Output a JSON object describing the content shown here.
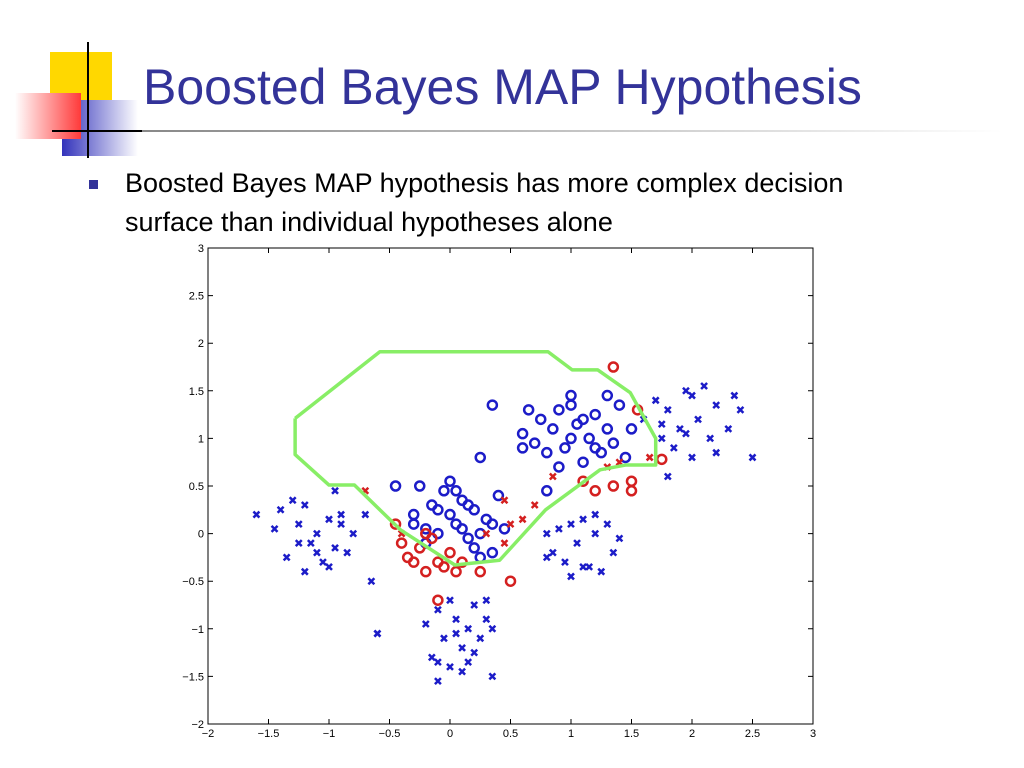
{
  "title": "Boosted Bayes MAP Hypothesis",
  "bullets": [
    "Boosted Bayes MAP hypothesis has more complex decision surface than individual hypotheses alone"
  ],
  "chart_data": {
    "type": "scatter",
    "xlim": [
      -2,
      3
    ],
    "xticks": [
      {
        "value": -2,
        "label": "−2"
      },
      {
        "value": -1.5,
        "label": "−1.5"
      },
      {
        "value": -1,
        "label": "−1"
      },
      {
        "value": -0.5,
        "label": "−0.5"
      },
      0,
      0.5,
      1,
      1.5,
      2,
      2.5,
      3
    ],
    "ylim": [
      -2,
      3
    ],
    "yticks": [
      {
        "value": -2,
        "label": "−2"
      },
      {
        "value": -1.5,
        "label": "−1.5"
      },
      {
        "value": -1,
        "label": "−1"
      },
      {
        "value": -0.5,
        "label": "−0.5"
      },
      0,
      0.5,
      1,
      1.5,
      2,
      2.5,
      3
    ],
    "series": [
      {
        "marker": "x",
        "color": "#1c1cc8",
        "x": [
          -1.6,
          -1.4,
          -1.35,
          -1.25,
          -1.2,
          -1.15,
          -1.1,
          -1.05,
          -1.0,
          -0.95,
          -0.9,
          -0.85,
          -0.8,
          -1.3,
          -1.2,
          -1.0,
          -0.9,
          -0.7,
          -1.1,
          -0.95,
          -1.45,
          -0.65,
          -0.6,
          -1.25,
          -0.2,
          -0.15,
          -0.1,
          -0.05,
          0.0,
          0.05,
          0.1,
          0.15,
          0.2,
          0.25,
          0.3,
          0.35,
          -0.1,
          0.0,
          0.1,
          0.2,
          0.3,
          0.05,
          -0.1,
          0.35,
          -0.6,
          0.15,
          1.6,
          1.7,
          1.75,
          1.8,
          1.85,
          1.9,
          1.95,
          2.0,
          2.05,
          2.1,
          2.15,
          2.2,
          2.3,
          2.4,
          2.5,
          1.8,
          2.0,
          2.2,
          1.95,
          1.75,
          2.35,
          0.8,
          0.85,
          0.9,
          0.95,
          1.0,
          1.05,
          1.1,
          1.15,
          1.2,
          1.25,
          1.3,
          1.35,
          1.0,
          1.2,
          1.4,
          0.8,
          1.1
        ],
        "values": [
          0.2,
          0.25,
          -0.25,
          0.1,
          0.3,
          -0.1,
          0.0,
          -0.3,
          0.15,
          -0.15,
          0.1,
          -0.2,
          0.0,
          0.35,
          -0.4,
          -0.35,
          0.2,
          0.2,
          -0.2,
          0.45,
          0.05,
          -0.5,
          -1.05,
          -0.1,
          -0.95,
          -1.3,
          -0.8,
          -1.1,
          -1.4,
          -0.9,
          -1.2,
          -1.0,
          -0.75,
          -1.1,
          -0.9,
          -1.5,
          -1.35,
          -0.7,
          -1.45,
          -1.25,
          -0.7,
          -1.05,
          -1.55,
          -1.0,
          -1.05,
          -1.35,
          1.2,
          1.4,
          1.0,
          1.3,
          0.9,
          1.1,
          1.5,
          0.8,
          1.2,
          1.55,
          1.0,
          1.35,
          1.1,
          1.3,
          0.8,
          0.6,
          1.45,
          0.85,
          1.05,
          1.15,
          1.45,
          0.0,
          -0.2,
          0.05,
          -0.3,
          0.1,
          -0.1,
          0.15,
          -0.35,
          0.0,
          -0.4,
          0.1,
          -0.2,
          -0.45,
          0.2,
          -0.05,
          -0.25,
          -0.35
        ]
      },
      {
        "marker": "o",
        "color": "#1c1cc8",
        "x": [
          -0.45,
          -0.3,
          -0.25,
          -0.2,
          -0.15,
          -0.1,
          -0.05,
          0.0,
          0.05,
          0.1,
          0.15,
          0.2,
          0.25,
          0.3,
          0.35,
          -0.2,
          0.0,
          0.1,
          0.2,
          0.35,
          0.4,
          -0.1,
          0.05,
          0.15,
          -0.3,
          0.25,
          0.45,
          0.35,
          0.6,
          0.65,
          0.7,
          0.75,
          0.8,
          0.85,
          0.9,
          0.95,
          1.0,
          1.05,
          1.1,
          1.15,
          1.2,
          1.25,
          1.3,
          1.35,
          1.4,
          1.45,
          1.5,
          0.9,
          1.0,
          1.1,
          1.2,
          1.3,
          1.0,
          0.6,
          0.25,
          0.8
        ],
        "values": [
          0.5,
          0.2,
          0.5,
          0.05,
          0.3,
          0.0,
          0.45,
          0.2,
          0.1,
          0.35,
          -0.05,
          0.25,
          0.0,
          0.15,
          -0.2,
          -0.1,
          0.55,
          0.05,
          -0.15,
          0.1,
          0.4,
          0.25,
          0.45,
          0.3,
          0.1,
          -0.25,
          0.05,
          1.35,
          1.05,
          1.3,
          0.95,
          1.2,
          0.85,
          1.1,
          1.3,
          0.9,
          1.45,
          1.15,
          0.75,
          1.0,
          1.25,
          0.85,
          1.1,
          0.95,
          1.35,
          0.8,
          1.1,
          0.7,
          1.0,
          1.2,
          0.9,
          1.45,
          1.35,
          0.9,
          0.8,
          0.45
        ]
      },
      {
        "marker": "o",
        "color": "#d42020",
        "x": [
          -0.45,
          -0.4,
          -0.35,
          -0.3,
          -0.25,
          -0.2,
          -0.15,
          -0.1,
          -0.05,
          0.0,
          0.1,
          0.25,
          0.5,
          -0.1,
          -0.2,
          1.35,
          1.55,
          1.5,
          1.5,
          1.75,
          1.35,
          1.2,
          1.1,
          0.05
        ],
        "values": [
          0.1,
          -0.1,
          -0.25,
          -0.3,
          -0.15,
          -0.4,
          -0.05,
          -0.3,
          -0.35,
          -0.2,
          -0.3,
          -0.4,
          -0.5,
          -0.7,
          0.0,
          1.75,
          1.3,
          0.55,
          0.45,
          0.78,
          0.5,
          0.45,
          0.55,
          -0.4
        ]
      },
      {
        "marker": "x",
        "color": "#d42020",
        "x": [
          -0.7,
          0.3,
          0.45,
          0.5,
          0.6,
          0.7,
          0.85,
          1.3,
          1.4,
          1.65,
          0.45,
          -0.4
        ],
        "values": [
          0.45,
          0.0,
          0.35,
          0.1,
          0.15,
          0.3,
          0.6,
          0.7,
          0.75,
          0.8,
          -0.1,
          0.0
        ]
      },
      {
        "marker": "line",
        "color": "#88ee66",
        "x": [
          -1.28,
          -0.58,
          0.81,
          1.01,
          1.22,
          1.49,
          1.7,
          1.7,
          1.45,
          1.24,
          0.79,
          0.41,
          0.04,
          -0.41,
          -0.79,
          -1.0,
          -1.28,
          -1.28
        ],
        "values": [
          1.21,
          1.91,
          1.91,
          1.72,
          1.72,
          1.48,
          1.0,
          0.72,
          0.72,
          0.67,
          0.25,
          -0.28,
          -0.33,
          0.04,
          0.51,
          0.51,
          0.83,
          1.21
        ]
      }
    ]
  }
}
